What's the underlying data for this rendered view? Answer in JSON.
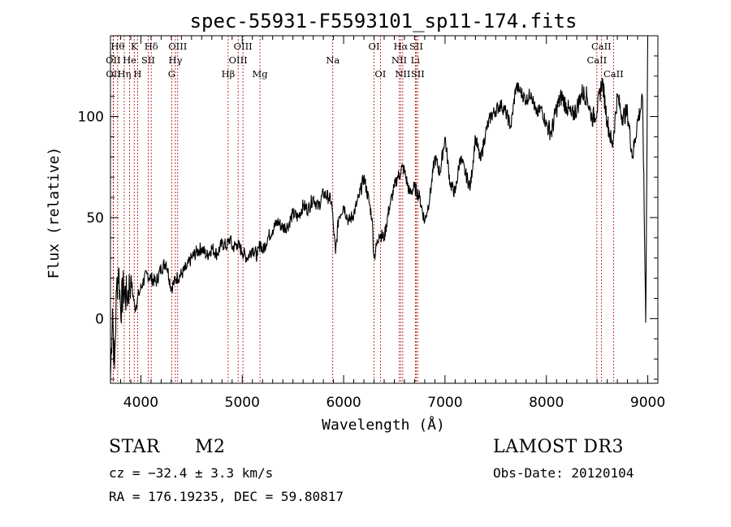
{
  "chart_data": {
    "type": "line",
    "title": "spec-55931-F5593101_sp11-174.fits",
    "xlabel": "Wavelength (Å)",
    "ylabel": "Flux (relative)",
    "xlim": [
      3700,
      9100
    ],
    "ylim": [
      -32,
      140
    ],
    "xticks": [
      4000,
      5000,
      6000,
      7000,
      8000,
      9000
    ],
    "yticks": [
      0,
      50,
      100
    ],
    "grid": false,
    "series": [
      {
        "color": "#000000",
        "x": [
          3700,
          3720,
          3740,
          3760,
          3780,
          3800,
          3830,
          3860,
          3900,
          3940,
          3980,
          4020,
          4060,
          4100,
          4150,
          4200,
          4250,
          4300,
          4350,
          4400,
          4450,
          4500,
          4550,
          4600,
          4650,
          4700,
          4750,
          4800,
          4850,
          4880,
          4900,
          4950,
          5000,
          5050,
          5100,
          5150,
          5180,
          5200,
          5250,
          5300,
          5350,
          5400,
          5450,
          5500,
          5550,
          5600,
          5650,
          5700,
          5750,
          5800,
          5850,
          5880,
          5900,
          5920,
          5950,
          6000,
          6050,
          6100,
          6150,
          6200,
          6250,
          6280,
          6300,
          6350,
          6400,
          6450,
          6500,
          6530,
          6560,
          6580,
          6600,
          6650,
          6700,
          6750,
          6800,
          6850,
          6900,
          6950,
          7000,
          7050,
          7100,
          7150,
          7200,
          7250,
          7300,
          7350,
          7400,
          7450,
          7500,
          7550,
          7600,
          7650,
          7700,
          7750,
          7800,
          7850,
          7900,
          7950,
          8000,
          8050,
          8100,
          8150,
          8200,
          8250,
          8300,
          8350,
          8400,
          8450,
          8500,
          8550,
          8600,
          8650,
          8700,
          8750,
          8800,
          8850,
          8900,
          8950,
          8980,
          9000
        ],
        "y": [
          -30,
          5,
          -25,
          15,
          25,
          5,
          15,
          10,
          20,
          5,
          12,
          18,
          22,
          20,
          18,
          25,
          28,
          15,
          20,
          22,
          25,
          30,
          33,
          35,
          31,
          35,
          32,
          37,
          36,
          40,
          35,
          37,
          33,
          30,
          35,
          31,
          38,
          33,
          40,
          44,
          48,
          45,
          46,
          52,
          50,
          56,
          54,
          60,
          55,
          62,
          60,
          58,
          45,
          32,
          50,
          56,
          48,
          52,
          60,
          70,
          58,
          50,
          30,
          42,
          40,
          55,
          65,
          70,
          72,
          75,
          73,
          62,
          65,
          60,
          48,
          60,
          80,
          72,
          90,
          67,
          62,
          80,
          72,
          65,
          90,
          78,
          92,
          100,
          103,
          106,
          102,
          95,
          115,
          112,
          108,
          112,
          101,
          104,
          96,
          92,
          104,
          110,
          105,
          100,
          104,
          112,
          110,
          99,
          103,
          118,
          98,
          85,
          110,
          100,
          102,
          80,
          98,
          108,
          -2,
          140
        ]
      }
    ],
    "lines": [
      {
        "label": "OII",
        "wl": 3727,
        "row": 2
      },
      {
        "label": "OII",
        "wl": 3729,
        "row": 3
      },
      {
        "label": "Hθ",
        "wl": 3771,
        "row": 1
      },
      {
        "label": "Hη",
        "wl": 3836,
        "row": 3
      },
      {
        "label": "He",
        "wl": 3889,
        "row": 2
      },
      {
        "label": "K",
        "wl": 3934,
        "row": 1
      },
      {
        "label": "H",
        "wl": 3968,
        "row": 3
      },
      {
        "label": "SII",
        "wl": 4072,
        "row": 2
      },
      {
        "label": "Hδ",
        "wl": 4102,
        "row": 1
      },
      {
        "label": "G",
        "wl": 4304,
        "row": 3
      },
      {
        "label": "Hγ",
        "wl": 4340,
        "row": 2
      },
      {
        "label": "OIII",
        "wl": 4363,
        "row": 1
      },
      {
        "label": "Hβ",
        "wl": 4861,
        "row": 3
      },
      {
        "label": "OIII",
        "wl": 4959,
        "row": 2
      },
      {
        "label": "OIII",
        "wl": 5007,
        "row": 1
      },
      {
        "label": "Mg",
        "wl": 5175,
        "row": 3
      },
      {
        "label": "Na",
        "wl": 5893,
        "row": 2
      },
      {
        "label": "OI",
        "wl": 6300,
        "row": 1
      },
      {
        "label": "OI",
        "wl": 6363,
        "row": 3
      },
      {
        "label": "NII",
        "wl": 6548,
        "row": 2
      },
      {
        "label": "Hα",
        "wl": 6563,
        "row": 1
      },
      {
        "label": "NII",
        "wl": 6583,
        "row": 3
      },
      {
        "label": "Li",
        "wl": 6707,
        "row": 2
      },
      {
        "label": "SII",
        "wl": 6716,
        "row": 1
      },
      {
        "label": "SII",
        "wl": 6731,
        "row": 3
      },
      {
        "label": "CaII",
        "wl": 8498,
        "row": 2
      },
      {
        "label": "CaII",
        "wl": 8542,
        "row": 1
      },
      {
        "label": "CaII",
        "wl": 8662,
        "row": 3
      }
    ]
  },
  "info": {
    "object_type": "STAR",
    "subclass": "M2",
    "survey": "LAMOST DR3",
    "cz": "cz = −32.4 ± 3.3 km/s",
    "obs_date": "Obs-Date: 20120104",
    "coords": "RA = 176.19235, DEC =  59.80817"
  }
}
